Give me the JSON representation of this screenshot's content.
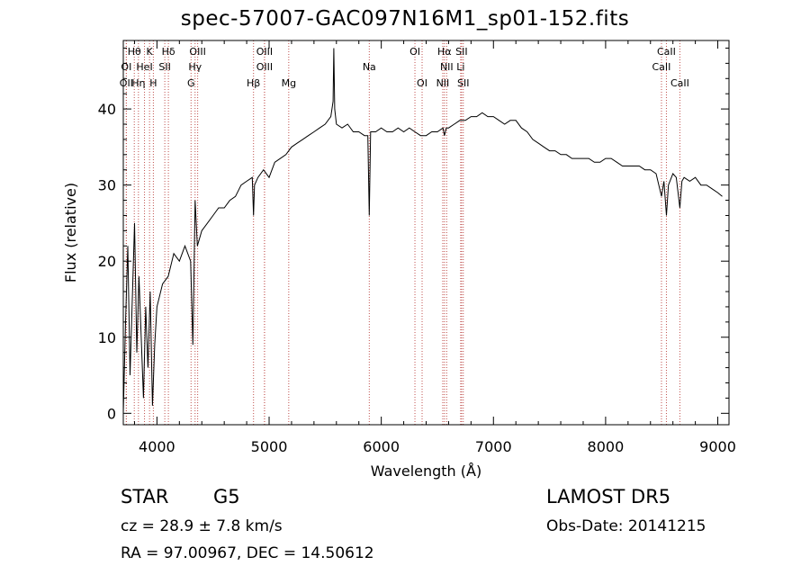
{
  "title": "spec-57007-GAC097N16M1_sp01-152.fits",
  "info": {
    "object_class": "STAR",
    "subclass": "G5",
    "survey": "LAMOST DR5",
    "cz": "cz = 28.9 ± 7.8 km/s",
    "obs_date": "Obs-Date: 20141215",
    "radec": "RA =  97.00967, DEC =  14.50612"
  },
  "chart_data": {
    "type": "line",
    "xlabel": "Wavelength (Å)",
    "ylabel": "Flux (relative)",
    "xlim": [
      3700,
      9100
    ],
    "ylim": [
      -1.5,
      49
    ],
    "xticks": [
      4000,
      5000,
      6000,
      7000,
      8000,
      9000
    ],
    "yticks": [
      0,
      10,
      20,
      30,
      40
    ],
    "grid": false,
    "line_color": "#000000",
    "marker_color": "#c0504d",
    "spectrum": {
      "x": [
        3700,
        3720,
        3740,
        3760,
        3780,
        3800,
        3820,
        3840,
        3860,
        3880,
        3900,
        3920,
        3940,
        3960,
        3980,
        4000,
        4050,
        4100,
        4150,
        4200,
        4250,
        4300,
        4320,
        4340,
        4360,
        4400,
        4450,
        4500,
        4550,
        4600,
        4650,
        4700,
        4750,
        4800,
        4850,
        4861,
        4870,
        4900,
        4950,
        5000,
        5050,
        5100,
        5150,
        5200,
        5250,
        5300,
        5350,
        5400,
        5450,
        5500,
        5550,
        5570,
        5577,
        5585,
        5600,
        5650,
        5700,
        5750,
        5800,
        5850,
        5880,
        5893,
        5905,
        5950,
        6000,
        6050,
        6100,
        6150,
        6200,
        6250,
        6300,
        6350,
        6400,
        6450,
        6500,
        6550,
        6563,
        6580,
        6600,
        6650,
        6700,
        6750,
        6800,
        6850,
        6900,
        6950,
        7000,
        7050,
        7100,
        7150,
        7200,
        7250,
        7300,
        7350,
        7400,
        7450,
        7500,
        7550,
        7600,
        7650,
        7700,
        7750,
        7800,
        7850,
        7900,
        7950,
        8000,
        8050,
        8100,
        8150,
        8200,
        8250,
        8300,
        8350,
        8400,
        8450,
        8498,
        8520,
        8542,
        8560,
        8600,
        8630,
        8662,
        8680,
        8700,
        8750,
        8800,
        8850,
        8900,
        8950,
        9000,
        9040
      ],
      "y": [
        0,
        12,
        22,
        5,
        15,
        25,
        8,
        18,
        10,
        2,
        14,
        6,
        16,
        1,
        9,
        14,
        17,
        18,
        21,
        20,
        22,
        20,
        9,
        28,
        22,
        24,
        25,
        26,
        27,
        27,
        28,
        28.5,
        30,
        30.5,
        31,
        26,
        30,
        31,
        32,
        31,
        33,
        33.5,
        34,
        35,
        35.5,
        36,
        36.5,
        37,
        37.5,
        38,
        39,
        41,
        48,
        40,
        38,
        37.5,
        38,
        37,
        37,
        36.5,
        36.5,
        26,
        37,
        37,
        37.5,
        37,
        37,
        37.5,
        37,
        37.5,
        37,
        36.5,
        36.5,
        37,
        37,
        37.5,
        36.5,
        37.5,
        37.5,
        38,
        38.5,
        38.5,
        39,
        39,
        39.5,
        39,
        39,
        38.5,
        38,
        38.5,
        38.5,
        37.5,
        37,
        36,
        35.5,
        35,
        34.5,
        34.5,
        34,
        34,
        33.5,
        33.5,
        33.5,
        33.5,
        33,
        33,
        33.5,
        33.5,
        33,
        32.5,
        32.5,
        32.5,
        32.5,
        32,
        32,
        31.5,
        28.5,
        30.5,
        26,
        30,
        31.5,
        31,
        27,
        30.5,
        31,
        30.5,
        31,
        30,
        30,
        29.5,
        29,
        28.5
      ]
    },
    "lines": [
      {
        "label": "Hθ",
        "wave": 3798,
        "row": 0
      },
      {
        "label": "K",
        "wave": 3934,
        "row": 0
      },
      {
        "label": "Hδ",
        "wave": 4102,
        "row": 0
      },
      {
        "label": "OIII",
        "wave": 4363,
        "row": 0
      },
      {
        "label": "OIII",
        "wave": 4959,
        "row": 0
      },
      {
        "label": "OI",
        "wave": 6300,
        "row": 0
      },
      {
        "label": "Hα",
        "wave": 6563,
        "row": 0
      },
      {
        "label": "SII",
        "wave": 6716,
        "row": 0
      },
      {
        "label": "CaII",
        "wave": 8542,
        "row": 0
      },
      {
        "label": "OI",
        "wave": 3727,
        "row": 1
      },
      {
        "label": "HeI",
        "wave": 3889,
        "row": 1
      },
      {
        "label": "SII",
        "wave": 4070,
        "row": 1
      },
      {
        "label": "Hγ",
        "wave": 4340,
        "row": 1
      },
      {
        "label": "OIII",
        "wave": 4959,
        "row": 1
      },
      {
        "label": "Na",
        "wave": 5893,
        "row": 1
      },
      {
        "label": "NII",
        "wave": 6583,
        "row": 1
      },
      {
        "label": "Li",
        "wave": 6708,
        "row": 1
      },
      {
        "label": "CaII",
        "wave": 8498,
        "row": 1
      },
      {
        "label": "OII",
        "wave": 3727,
        "row": 2
      },
      {
        "label": "Hη",
        "wave": 3835,
        "row": 2
      },
      {
        "label": "H",
        "wave": 3968,
        "row": 2
      },
      {
        "label": "G",
        "wave": 4304,
        "row": 2
      },
      {
        "label": "Hβ",
        "wave": 4861,
        "row": 2
      },
      {
        "label": "Mg",
        "wave": 5175,
        "row": 2
      },
      {
        "label": "OI",
        "wave": 6364,
        "row": 2
      },
      {
        "label": "NII",
        "wave": 6548,
        "row": 2
      },
      {
        "label": "SII",
        "wave": 6731,
        "row": 2
      },
      {
        "label": "CaII",
        "wave": 8662,
        "row": 2
      }
    ]
  }
}
